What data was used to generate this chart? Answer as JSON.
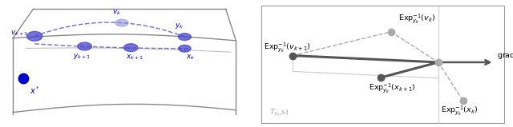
{
  "fig_width": 6.4,
  "fig_height": 1.59,
  "dpi": 100,
  "left_panel": {
    "manifold_color": "#888888",
    "manifold_linewidth": 1.0,
    "blue_dark": "#0000cc",
    "blue_mid": "#4444cc",
    "blue_light": "#8888dd",
    "dashed_color": "#6666bb"
  },
  "right_panel": {
    "dark_point": "#555555",
    "light_point": "#aaaaaa",
    "dark_line": "#555555",
    "light_line": "#bbbbbb",
    "dashed": "#999999",
    "box_color": "#888888",
    "text_color": "#000000",
    "label_color": "#aaaaaa"
  }
}
